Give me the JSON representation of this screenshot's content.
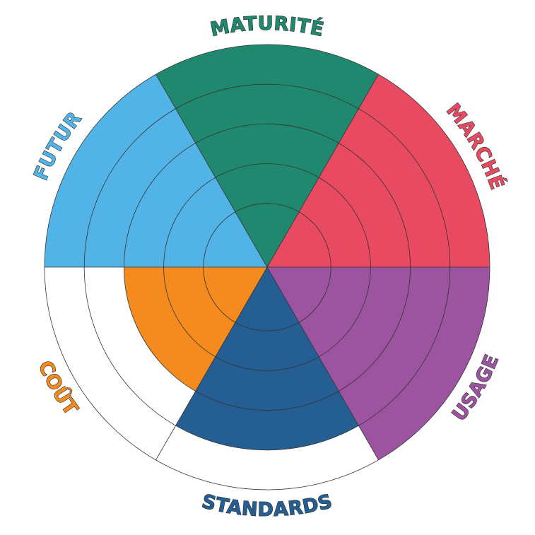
{
  "chart_data": {
    "type": "polar_area",
    "categories": [
      "MATURITÉ",
      "MARCHÉ",
      "USAGE",
      "STANDARDS",
      "COÛT",
      "FUTUR"
    ],
    "values": [
      5,
      5,
      5,
      4,
      3,
      5
    ],
    "colors": [
      "#218870",
      "#e84a61",
      "#9c54a0",
      "#245e92",
      "#f58b1f",
      "#52b4e6"
    ],
    "rlim": [
      0,
      5
    ],
    "rticks": [
      1,
      2,
      3,
      4,
      5
    ],
    "grid": true
  }
}
